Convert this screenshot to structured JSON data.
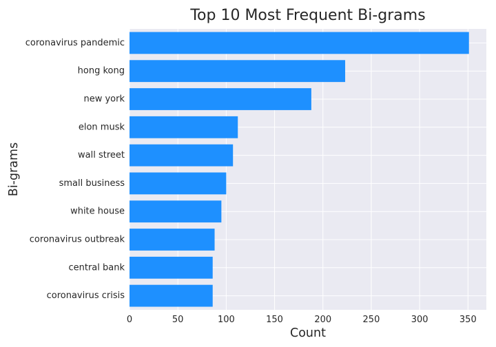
{
  "chart_data": {
    "type": "bar",
    "orientation": "horizontal",
    "title": "Top 10 Most Frequent Bi-grams",
    "xlabel": "Count",
    "ylabel": "Bi-grams",
    "categories": [
      "coronavirus pandemic",
      "hong kong",
      "new york",
      "elon musk",
      "wall street",
      "small business",
      "white house",
      "coronavirus outbreak",
      "central bank",
      "coronavirus crisis"
    ],
    "values": [
      351,
      223,
      188,
      112,
      107,
      100,
      95,
      88,
      86,
      86
    ],
    "xlim": [
      0,
      369
    ],
    "xticks": [
      0,
      50,
      100,
      150,
      200,
      250,
      300,
      350
    ],
    "grid": true,
    "bar_color": "#1E90FF",
    "background_color": "#EAEAF2",
    "grid_color": "#FFFFFF"
  }
}
